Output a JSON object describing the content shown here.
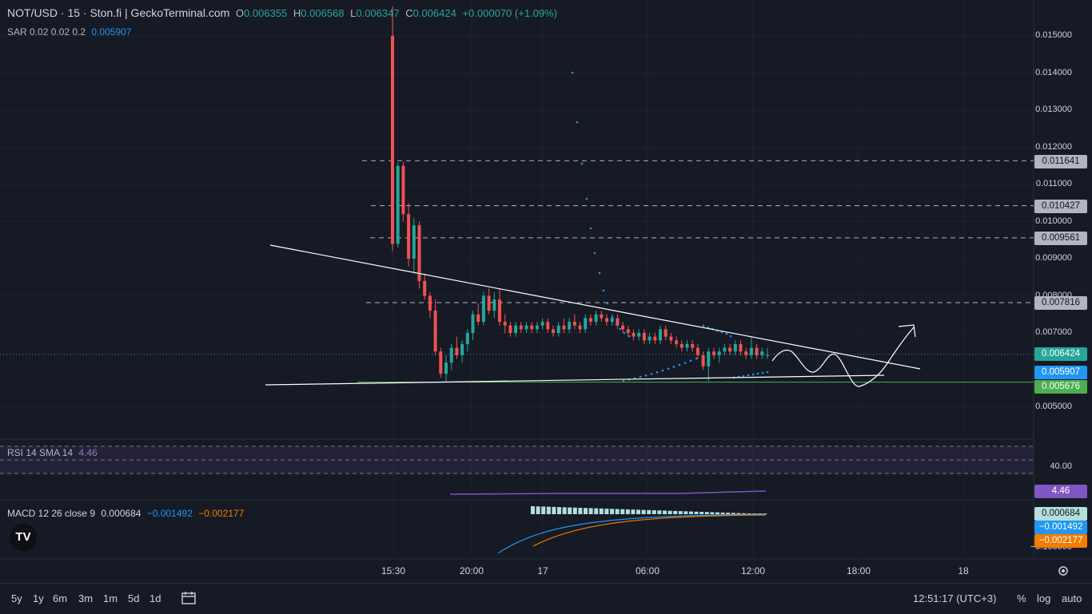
{
  "header": {
    "symbol": "NOT/USD · 15 · Ston.fi | GeckoTerminal.com",
    "o_label": "O",
    "o_val": "0.006355",
    "h_label": "H",
    "h_val": "0.006568",
    "l_label": "L",
    "l_val": "0.006347",
    "c_label": "C",
    "c_val": "0.006424",
    "change": "+0.000070 (+1.09%)",
    "sar_label": "SAR 0.02 0.02 0.2",
    "sar_val": "0.005907"
  },
  "rsi": {
    "label": "RSI 14 SMA 14",
    "value": "4.46",
    "axis_tick": "40.00",
    "badge": "4.46"
  },
  "macd": {
    "label": "MACD 12 26 close 9",
    "v1": "0.000684",
    "v2": "−0.001492",
    "v3": "−0.002177",
    "badge1": "0.000684",
    "badge2": "−0.001492",
    "badge3": "−0.002177",
    "partial_tick": "−0.100000"
  },
  "price_labels": {
    "l1": "0.011641",
    "l2": "0.010427",
    "l3": "0.009561",
    "l4": "0.007816",
    "current": "0.006424",
    "sar": "0.005907",
    "support": "0.005676"
  },
  "x_axis": [
    "15:30",
    "20:00",
    "17",
    "06:00",
    "12:00",
    "18:00",
    "18"
  ],
  "bottom": {
    "ranges": [
      "5y",
      "1y",
      "6m",
      "3m",
      "1m",
      "5d",
      "1d"
    ],
    "time": "12:51:17 (UTC+3)",
    "pct": "%",
    "log": "log",
    "auto": "auto"
  },
  "colors": {
    "up": "#26a69a",
    "down": "#ef5350",
    "sar": "#2196f3",
    "rsi": "#7e57c2",
    "macd_line": "#2196f3",
    "signal": "#f57c00",
    "hist": "#b2dfdb"
  },
  "chart_data": {
    "type": "candlestick",
    "title": "NOT/USD · 15 · Ston.fi",
    "y_axis_ticks": [
      "0.015000",
      "0.014000",
      "0.013000",
      "0.012000",
      "0.011000",
      "0.010000",
      "0.009000",
      "0.008000",
      "0.007000",
      "0.005000"
    ],
    "ylim": [
      0.0047,
      0.0156
    ],
    "horizontal_levels": [
      0.011641,
      0.010427,
      0.009561,
      0.007816
    ],
    "support_level": 0.005676,
    "current_price": 0.006424,
    "sar_value": 0.005907,
    "candles_ohlc": [
      [
        0.015,
        0.0158,
        0.0092,
        0.0094
      ],
      [
        0.0094,
        0.0116,
        0.0093,
        0.0115
      ],
      [
        0.0115,
        0.0116,
        0.01,
        0.0102
      ],
      [
        0.0102,
        0.0105,
        0.0088,
        0.009
      ],
      [
        0.009,
        0.0101,
        0.0086,
        0.0099
      ],
      [
        0.0099,
        0.01,
        0.0082,
        0.0084
      ],
      [
        0.0084,
        0.0086,
        0.0079,
        0.008
      ],
      [
        0.008,
        0.0081,
        0.0074,
        0.0076
      ],
      [
        0.0076,
        0.0079,
        0.0064,
        0.0065
      ],
      [
        0.0065,
        0.0066,
        0.0058,
        0.0059
      ],
      [
        0.0059,
        0.0064,
        0.0057,
        0.0062
      ],
      [
        0.0062,
        0.0067,
        0.006,
        0.0066
      ],
      [
        0.0066,
        0.0069,
        0.0063,
        0.0064
      ],
      [
        0.0064,
        0.0068,
        0.0062,
        0.0067
      ],
      [
        0.0067,
        0.0071,
        0.0065,
        0.007
      ],
      [
        0.007,
        0.0076,
        0.0068,
        0.0075
      ],
      [
        0.0075,
        0.0078,
        0.0072,
        0.0073
      ],
      [
        0.0073,
        0.0081,
        0.0072,
        0.008
      ],
      [
        0.008,
        0.0082,
        0.0075,
        0.0076
      ],
      [
        0.0076,
        0.0081,
        0.0074,
        0.0079
      ],
      [
        0.0079,
        0.0082,
        0.0072,
        0.0073
      ],
      [
        0.0073,
        0.0075,
        0.007,
        0.0072
      ],
      [
        0.0072,
        0.0073,
        0.0069,
        0.007
      ],
      [
        0.007,
        0.0073,
        0.0069,
        0.0072
      ],
      [
        0.0072,
        0.0073,
        0.007,
        0.0071
      ],
      [
        0.0071,
        0.0073,
        0.007,
        0.0072
      ],
      [
        0.0072,
        0.0073,
        0.007,
        0.0071
      ],
      [
        0.0071,
        0.0073,
        0.007,
        0.0072
      ],
      [
        0.0072,
        0.0074,
        0.0071,
        0.0073
      ],
      [
        0.0073,
        0.0074,
        0.007,
        0.0071
      ],
      [
        0.0071,
        0.0072,
        0.0069,
        0.007
      ],
      [
        0.007,
        0.0073,
        0.0069,
        0.0072
      ],
      [
        0.0072,
        0.0074,
        0.007,
        0.0071
      ],
      [
        0.0071,
        0.0074,
        0.007,
        0.0073
      ],
      [
        0.0073,
        0.0075,
        0.0071,
        0.0072
      ],
      [
        0.0072,
        0.0073,
        0.007,
        0.0071
      ],
      [
        0.0071,
        0.0075,
        0.007,
        0.0074
      ],
      [
        0.0074,
        0.0075,
        0.0072,
        0.0073
      ],
      [
        0.0073,
        0.0076,
        0.0072,
        0.0075
      ],
      [
        0.0075,
        0.0076,
        0.0073,
        0.0074
      ],
      [
        0.0074,
        0.0075,
        0.0072,
        0.0073
      ],
      [
        0.0073,
        0.0075,
        0.0072,
        0.0074
      ],
      [
        0.0074,
        0.0075,
        0.0071,
        0.0072
      ],
      [
        0.0072,
        0.0073,
        0.007,
        0.0071
      ],
      [
        0.0071,
        0.0072,
        0.0069,
        0.007
      ],
      [
        0.007,
        0.0071,
        0.0068,
        0.0069
      ],
      [
        0.0069,
        0.0071,
        0.0068,
        0.007
      ],
      [
        0.007,
        0.0071,
        0.0067,
        0.0068
      ],
      [
        0.0068,
        0.007,
        0.0067,
        0.0069
      ],
      [
        0.0069,
        0.007,
        0.0067,
        0.0068
      ],
      [
        0.0068,
        0.0072,
        0.0067,
        0.0071
      ],
      [
        0.0071,
        0.0072,
        0.0068,
        0.0069
      ],
      [
        0.0069,
        0.007,
        0.0067,
        0.0068
      ],
      [
        0.0068,
        0.0069,
        0.0066,
        0.0067
      ],
      [
        0.0067,
        0.0068,
        0.0065,
        0.0066
      ],
      [
        0.0066,
        0.0068,
        0.0065,
        0.0067
      ],
      [
        0.0067,
        0.0068,
        0.0065,
        0.0066
      ],
      [
        0.0066,
        0.0067,
        0.0063,
        0.0064
      ],
      [
        0.0064,
        0.0065,
        0.006,
        0.0061
      ],
      [
        0.0061,
        0.0066,
        0.0057,
        0.0065
      ],
      [
        0.0065,
        0.0066,
        0.0063,
        0.0064
      ],
      [
        0.0064,
        0.0066,
        0.0062,
        0.0065
      ],
      [
        0.0065,
        0.0067,
        0.0064,
        0.0066
      ],
      [
        0.0066,
        0.0067,
        0.0064,
        0.0065
      ],
      [
        0.0065,
        0.0068,
        0.0064,
        0.0067
      ],
      [
        0.0067,
        0.0068,
        0.0064,
        0.0065
      ],
      [
        0.0065,
        0.0066,
        0.0063,
        0.0064
      ],
      [
        0.0064,
        0.0069,
        0.0063,
        0.0066
      ],
      [
        0.0066,
        0.0067,
        0.0063,
        0.0064
      ],
      [
        0.0064,
        0.0066,
        0.0063,
        0.0065
      ],
      [
        0.0064,
        0.0066,
        0.0063,
        0.0064
      ]
    ],
    "annotations": [
      "descending trendline",
      "ascending support line",
      "projected path arrow"
    ]
  }
}
